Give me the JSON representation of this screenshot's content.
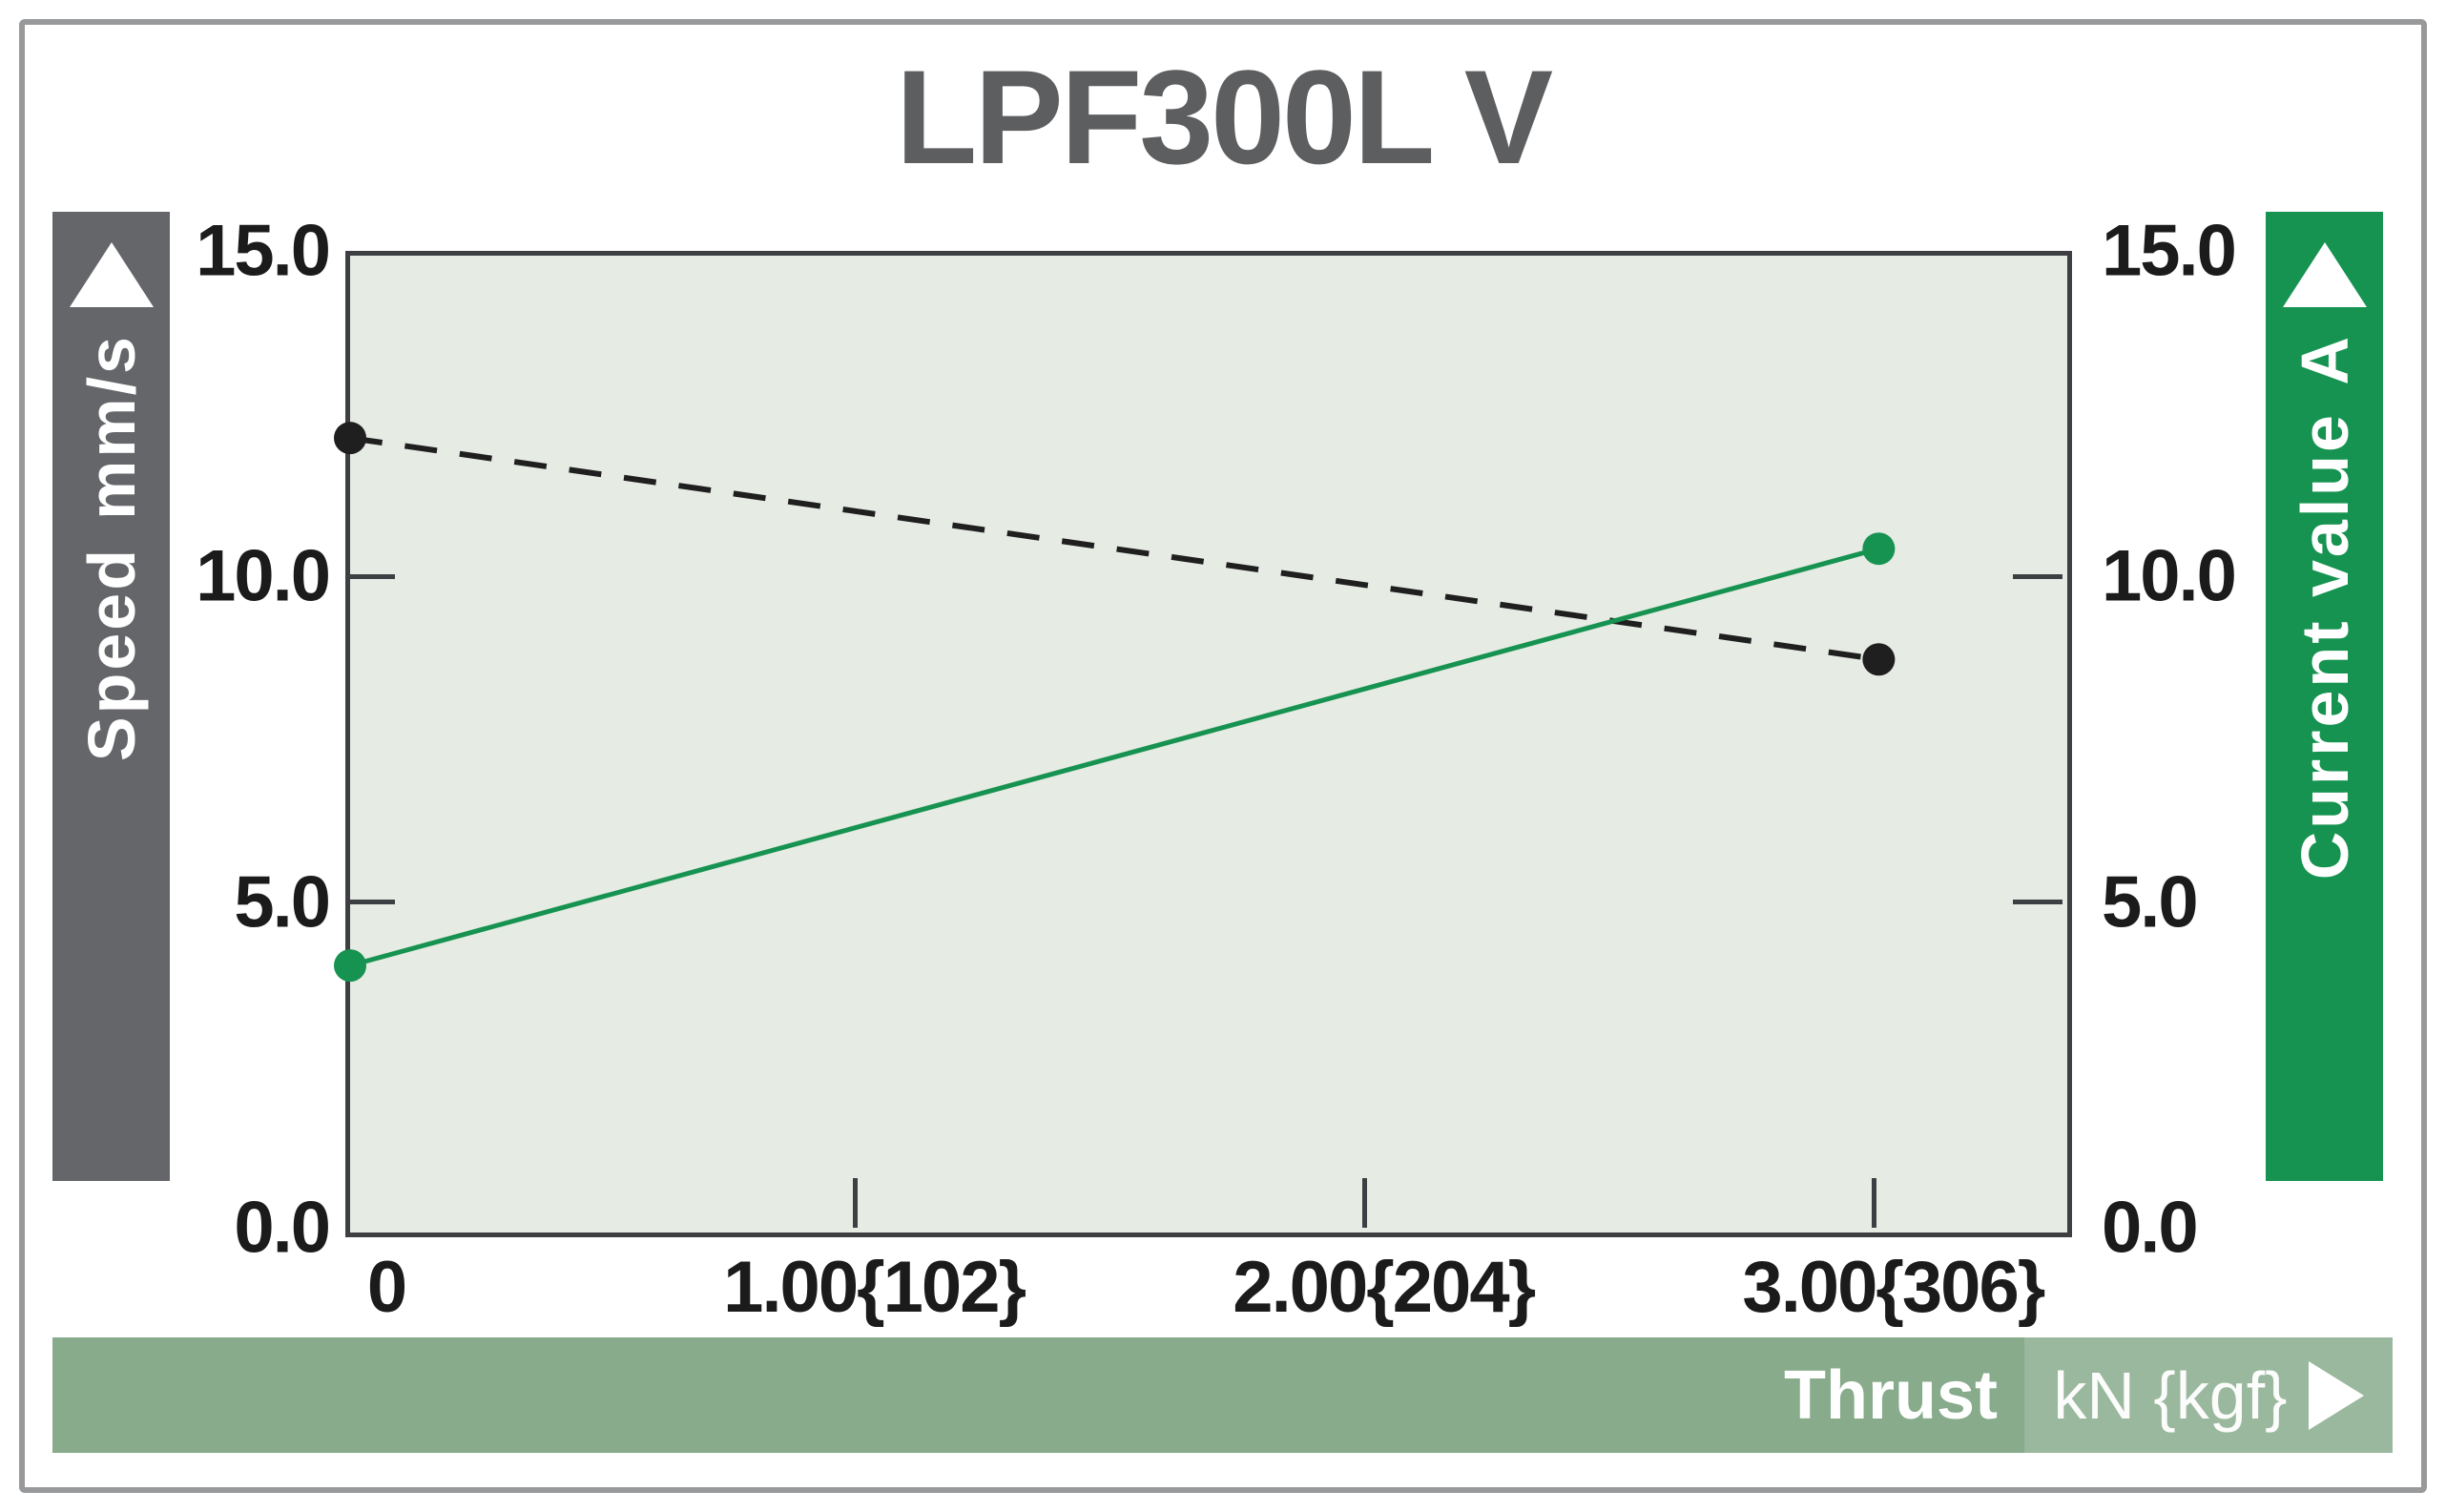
{
  "title": "LPF300L V",
  "y_left_axis": {
    "label": "Speed",
    "unit": "mm/s"
  },
  "y_right_axis": {
    "label": "Current value",
    "unit": "A"
  },
  "x_axis": {
    "label": "Thrust",
    "unit": "kN {kgf}"
  },
  "colors": {
    "accent_green": "#169350",
    "axis_gray": "#646669",
    "sage_bar": "#87ab8b",
    "plot_background": "#e6ebe4",
    "plot_border": "#3d3f42",
    "speed_line": "#1f1f1f",
    "title_gray": "#5d5e60"
  },
  "chart_data": {
    "type": "line",
    "title": "LPF300L V",
    "xlabel": "Thrust kN {kgf}",
    "ylabel_left": "Speed mm/s",
    "ylabel_right": "Current value A",
    "xlim": [
      0,
      3.37
    ],
    "ylim": [
      0,
      15
    ],
    "grid": false,
    "legend": false,
    "x_values": [
      0,
      3.0
    ],
    "series": [
      {
        "name": "Speed",
        "axis": "left",
        "unit": "mm/s",
        "style": "dashed",
        "color": "#1f1f1f",
        "values": [
          12.2,
          8.8
        ]
      },
      {
        "name": "Current value",
        "axis": "right",
        "unit": "A",
        "style": "solid",
        "color": "#169350",
        "values": [
          4.1,
          10.5
        ]
      }
    ],
    "x_ticks": [
      {
        "value": 0,
        "label": "0"
      },
      {
        "value": 1,
        "label": "1.00{102}"
      },
      {
        "value": 2,
        "label": "2.00{204}"
      },
      {
        "value": 3,
        "label": "3.00{306}"
      }
    ],
    "y_ticks": [
      {
        "value": 0,
        "label": "0.0"
      },
      {
        "value": 5,
        "label": "5.0"
      },
      {
        "value": 10,
        "label": "10.0"
      },
      {
        "value": 15,
        "label": "15.0"
      }
    ]
  }
}
